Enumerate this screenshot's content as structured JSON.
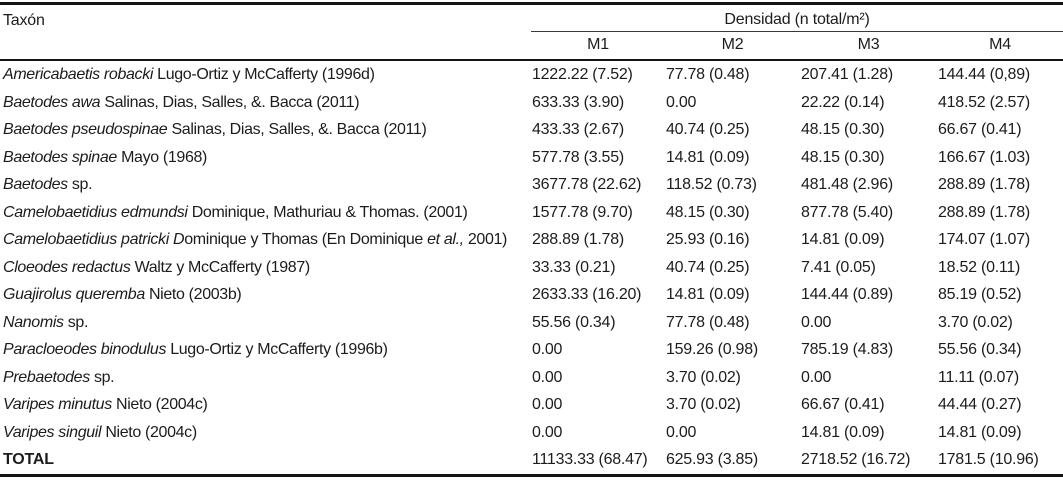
{
  "table": {
    "header": {
      "taxon_label": "Taxón",
      "density_label": "Densidad (n total/m²)",
      "columns": [
        "M1",
        "M2",
        "M3",
        "M4"
      ]
    },
    "rows": [
      {
        "name": [
          {
            "t": "Americabaetis robacki",
            "i": true
          },
          {
            "t": " Lugo-Ortiz y McCafferty (1996d)",
            "i": false
          }
        ],
        "values": [
          "1222.22 (7.52)",
          "77.78 (0.48)",
          "207.41 (1.28)",
          "144.44 (0,89)"
        ]
      },
      {
        "name": [
          {
            "t": "Baetodes awa",
            "i": true
          },
          {
            "t": " Salinas, Dias, Salles, &. Bacca (2011)",
            "i": false
          }
        ],
        "values": [
          "633.33 (3.90)",
          "0.00",
          "22.22 (0.14)",
          "418.52 (2.57)"
        ]
      },
      {
        "name": [
          {
            "t": "Baetodes pseudospinae",
            "i": true
          },
          {
            "t": " Salinas, Dias, Salles, &. Bacca (2011)",
            "i": false
          }
        ],
        "values": [
          "433.33 (2.67)",
          "40.74 (0.25)",
          "48.15 (0.30)",
          "66.67 (0.41)"
        ]
      },
      {
        "name": [
          {
            "t": "Baetodes spinae",
            "i": true
          },
          {
            "t": " Mayo (1968)",
            "i": false
          }
        ],
        "values": [
          "577.78 (3.55)",
          "14.81 (0.09)",
          "48.15 (0.30)",
          "166.67 (1.03)"
        ]
      },
      {
        "name": [
          {
            "t": "Baetodes",
            "i": true
          },
          {
            "t": " sp.",
            "i": false
          }
        ],
        "values": [
          "3677.78 (22.62)",
          "118.52 (0.73)",
          "481.48 (2.96)",
          "288.89 (1.78)"
        ]
      },
      {
        "name": [
          {
            "t": "Camelobaetidius edmundsi",
            "i": true
          },
          {
            "t": " Dominique, Mathuriau & Thomas. (2001)",
            "i": false
          }
        ],
        "values": [
          "1577.78 (9.70)",
          "48.15 (0.30)",
          "877.78 (5.40)",
          "288.89 (1.78)"
        ]
      },
      {
        "name": [
          {
            "t": "Camelobaetidius patricki D",
            "i": true
          },
          {
            "t": "ominique y Thomas (En Dominique ",
            "i": false
          },
          {
            "t": "et al.,",
            "i": true
          },
          {
            "t": " 2001)",
            "i": false
          }
        ],
        "values": [
          "288.89 (1.78)",
          "25.93 (0.16)",
          "14.81 (0.09)",
          "174.07 (1.07)"
        ]
      },
      {
        "name": [
          {
            "t": "Cloeodes redactus",
            "i": true
          },
          {
            "t": " Waltz y McCafferty (1987)",
            "i": false
          }
        ],
        "values": [
          "33.33 (0.21)",
          "40.74 (0.25)",
          "7.41 (0.05)",
          "18.52 (0.11)"
        ]
      },
      {
        "name": [
          {
            "t": "Guajirolus queremba",
            "i": true
          },
          {
            "t": " Nieto (2003b)",
            "i": false
          }
        ],
        "values": [
          "2633.33 (16.20)",
          "14.81 (0.09)",
          "144.44 (0.89)",
          "85.19 (0.52)"
        ]
      },
      {
        "name": [
          {
            "t": "Nanomis",
            "i": true
          },
          {
            "t": " sp.",
            "i": false
          }
        ],
        "values": [
          "55.56 (0.34)",
          "77.78 (0.48)",
          "0.00",
          "3.70 (0.02)"
        ]
      },
      {
        "name": [
          {
            "t": "Paracloeodes binodulus",
            "i": true
          },
          {
            "t": " Lugo-Ortiz y McCafferty (1996b)",
            "i": false
          }
        ],
        "values": [
          "0.00",
          "159.26 (0.98)",
          "785.19 (4.83)",
          "55.56 (0.34)"
        ]
      },
      {
        "name": [
          {
            "t": "Prebaetodes",
            "i": true
          },
          {
            "t": " sp.",
            "i": false
          }
        ],
        "values": [
          "0.00",
          "3.70 (0.02)",
          "0.00",
          "11.11 (0.07)"
        ]
      },
      {
        "name": [
          {
            "t": "Varipes minutus",
            "i": true
          },
          {
            "t": " Nieto (2004c)",
            "i": false
          }
        ],
        "values": [
          "0.00",
          "3.70 (0.02)",
          "66.67 (0.41)",
          "44.44 (0.27)"
        ]
      },
      {
        "name": [
          {
            "t": "Varipes singuil",
            "i": true
          },
          {
            "t": " Nieto (2004c)",
            "i": false
          }
        ],
        "values": [
          "0.00",
          "0.00",
          "14.81 (0.09)",
          "14.81 (0.09)"
        ]
      }
    ],
    "total_row": {
      "label": "TOTAL",
      "values": [
        "11133.33 (68.47)",
        "625.93 (3.85)",
        "2718.52 (16.72)",
        "1781.5 (10.96)"
      ]
    }
  }
}
